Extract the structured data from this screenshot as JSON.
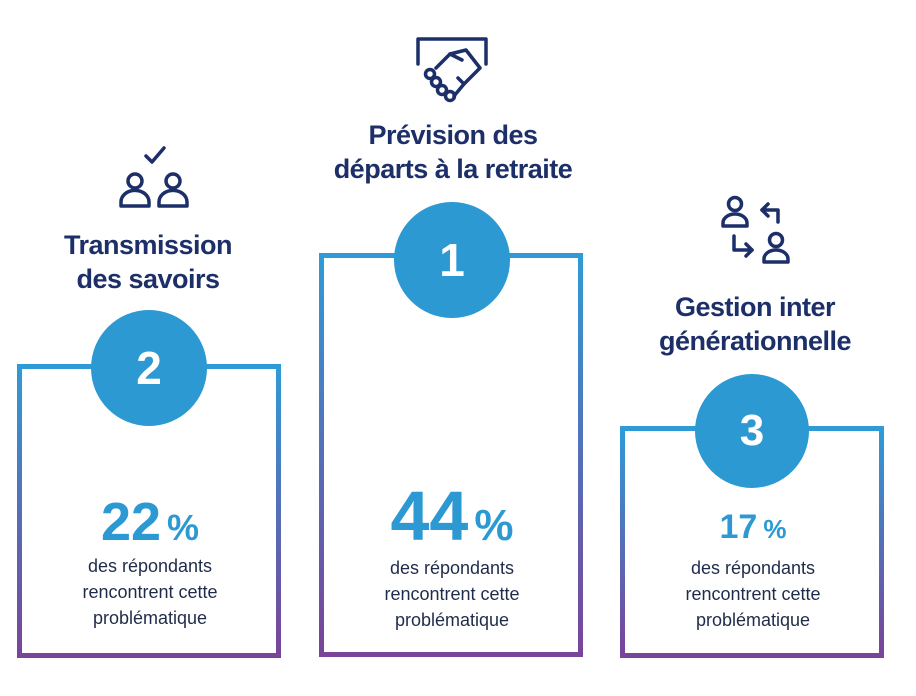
{
  "chart_data": {
    "type": "bar",
    "categories": [
      "Transmission des savoirs",
      "Prévision des départs à la retraite",
      "Gestion inter générationnelle"
    ],
    "values": [
      22,
      44,
      17
    ],
    "ranks": [
      "2",
      "1",
      "3"
    ],
    "unit": "%",
    "description_lines": [
      "des répondants",
      "rencontrent cette",
      "problématique"
    ],
    "columns": [
      {
        "title_lines": [
          "Transmission",
          "des savoirs"
        ],
        "rank": "2",
        "value": "22",
        "icon": "people-check-icon"
      },
      {
        "title_lines": [
          "Prévision des",
          "départs à la retraite"
        ],
        "rank": "1",
        "value": "44",
        "icon": "handshake-icon"
      },
      {
        "title_lines": [
          "Gestion inter",
          "générationnelle"
        ],
        "rank": "3",
        "value": "17",
        "icon": "people-exchange-icon"
      }
    ]
  },
  "colors": {
    "accent_blue": "#2c99d3",
    "title_navy": "#1c2f68",
    "text_dark": "#1f2b4a",
    "frame_gradient_top": "#2f9bd6",
    "frame_gradient_bottom": "#7a4499"
  }
}
